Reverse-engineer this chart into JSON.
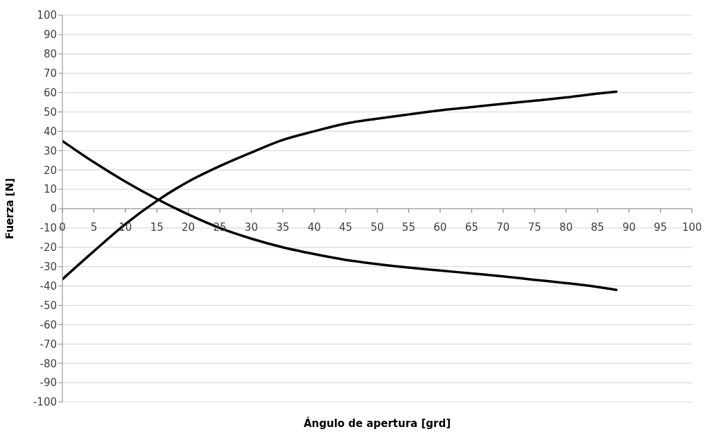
{
  "chart_data": {
    "type": "line",
    "xlabel": "Ángulo de apertura [grd]",
    "ylabel": "Fuerza [N]",
    "x": [
      0,
      5,
      10,
      15,
      20,
      25,
      30,
      35,
      40,
      45,
      50,
      55,
      60,
      65,
      70,
      75,
      80,
      85,
      88
    ],
    "series": [
      {
        "color": "#000000",
        "values": [
          -36.5,
          -22,
          -8,
          4,
          14,
          22,
          29,
          35.5,
          40,
          44,
          46.5,
          48.7,
          50.8,
          52.5,
          54.2,
          55.8,
          57.5,
          59.5,
          60.5
        ]
      },
      {
        "color": "#000000",
        "values": [
          35,
          24,
          14,
          5,
          -3,
          -10,
          -15.5,
          -20,
          -23.5,
          -26.5,
          -28.7,
          -30.5,
          -32,
          -33.5,
          -35,
          -36.8,
          -38.5,
          -40.5,
          -42
        ]
      }
    ],
    "xlim": [
      0,
      100
    ],
    "xticks": [
      0,
      5,
      10,
      15,
      20,
      25,
      30,
      35,
      40,
      45,
      50,
      55,
      60,
      65,
      70,
      75,
      80,
      85,
      90,
      95,
      100
    ],
    "ylim": [
      -100,
      100
    ],
    "yticks": [
      -100,
      -90,
      -80,
      -70,
      -60,
      -50,
      -40,
      -30,
      -20,
      -10,
      0,
      10,
      20,
      30,
      40,
      50,
      60,
      70,
      80,
      90,
      100
    ],
    "grid": "y",
    "legend": false,
    "marker": "none",
    "line_style": "solid"
  }
}
